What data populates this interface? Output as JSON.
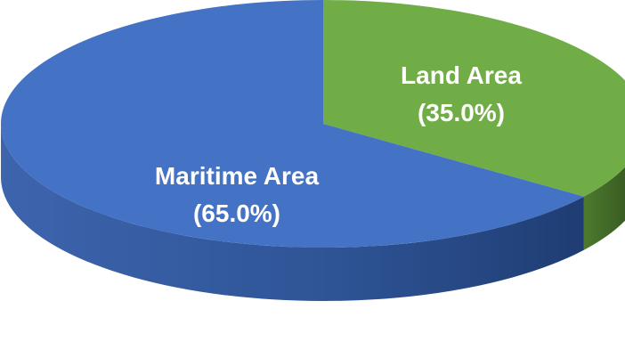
{
  "chart_data": {
    "type": "pie",
    "style": "3d",
    "title": "",
    "slices": [
      {
        "label": "Maritime Area",
        "percent_label": "(65.0%)",
        "value": 65.0,
        "color": "#4472C4",
        "side_color": "#2F4F8F"
      },
      {
        "label": "Land Area",
        "percent_label": "(35.0%)",
        "value": 35.0,
        "color": "#70AD47",
        "side_color": "#3C6B24"
      }
    ],
    "legend": "none"
  }
}
